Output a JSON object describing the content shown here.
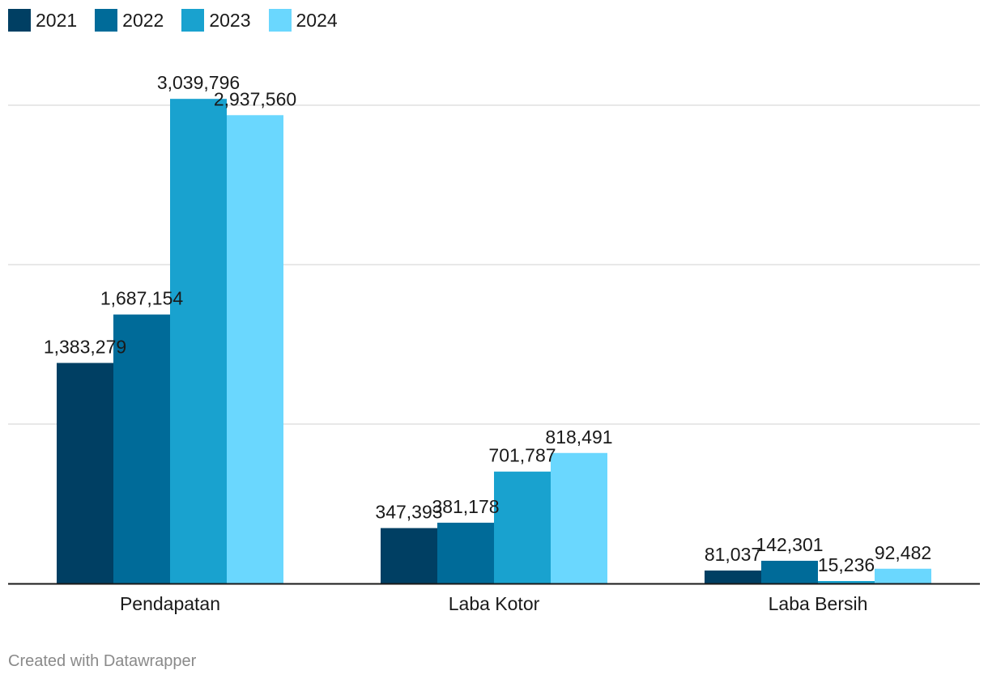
{
  "legend": [
    {
      "label": "2021",
      "color": "#003f63"
    },
    {
      "label": "2022",
      "color": "#006b99"
    },
    {
      "label": "2023",
      "color": "#19a2cf"
    },
    {
      "label": "2024",
      "color": "#6ad7fe"
    }
  ],
  "credit": "Created with Datawrapper",
  "chart_data": {
    "type": "bar",
    "categories": [
      "Pendapatan",
      "Laba Kotor",
      "Laba Bersih"
    ],
    "series": [
      {
        "name": "2021",
        "color": "#003f63",
        "values": [
          1383279,
          347393,
          81037
        ],
        "labels": [
          "1,383,279",
          "347,393",
          "81,037"
        ]
      },
      {
        "name": "2022",
        "color": "#006b99",
        "values": [
          1687154,
          381178,
          142301
        ],
        "labels": [
          "1,687,154",
          "381,178",
          "142,301"
        ]
      },
      {
        "name": "2023",
        "color": "#19a2cf",
        "values": [
          3039796,
          701787,
          15236
        ],
        "labels": [
          "3,039,796",
          "701,787",
          "15,236"
        ]
      },
      {
        "name": "2024",
        "color": "#6ad7fe",
        "values": [
          2937560,
          818491,
          92482
        ],
        "labels": [
          "2,937,560",
          "818,491",
          "92,482"
        ]
      }
    ],
    "ylim": [
      0,
      3000000
    ],
    "gridlines": [
      1000000,
      2000000,
      3000000
    ],
    "grid": true,
    "legend_position": "top-left",
    "xlabel": "",
    "ylabel": ""
  }
}
